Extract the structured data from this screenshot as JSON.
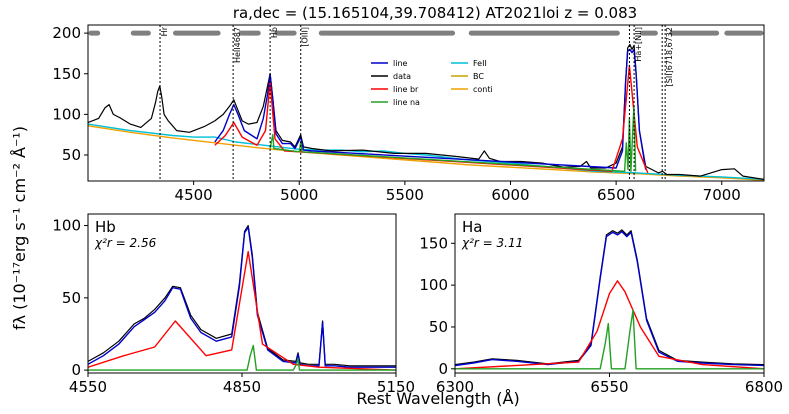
{
  "figure": {
    "suptitle": "ra,dec = (15.165104,39.708412)   AT2021loi   z = 0.083",
    "ylabel": "fλ (10⁻¹⁷erg s⁻¹ cm⁻² Å⁻¹)",
    "xlabel": "Rest Wavelength (Å)"
  },
  "colors": {
    "line": "#0000cc",
    "data": "#000000",
    "line_br": "#ff0000",
    "line_na": "#22a022",
    "FeII": "#00bfd8",
    "BC": "#c8a400",
    "conti": "#f0a000",
    "mask": "#808080"
  },
  "chart_data": [
    {
      "panel": "top",
      "type": "line",
      "xlim": [
        4000,
        7200
      ],
      "ylim": [
        18,
        210
      ],
      "xticks": [
        4500,
        5000,
        5500,
        6000,
        6500,
        7000
      ],
      "yticks": [
        50,
        100,
        150,
        200
      ],
      "legend": {
        "placement": "center",
        "entries": [
          {
            "label": "line",
            "color_key": "line"
          },
          {
            "label": "data",
            "color_key": "data"
          },
          {
            "label": "line br",
            "color_key": "line_br"
          },
          {
            "label": "line na",
            "color_key": "line_na"
          },
          {
            "label": "FeII",
            "color_key": "FeII"
          },
          {
            "label": "BC",
            "color_key": "BC"
          },
          {
            "label": "conti",
            "color_key": "conti"
          }
        ]
      },
      "line_markers": [
        {
          "label": "Hr",
          "x": 4341
        },
        {
          "label": "HeII4687",
          "x": 4687
        },
        {
          "label": "Hb",
          "x": 4862
        },
        {
          "label": "[OIII]",
          "x": 5007
        },
        {
          "label": "Ha+[NII]",
          "x": 6563,
          "x2": 6585
        },
        {
          "label": "[SII]6718,6732",
          "x": 6718,
          "x2": 6732
        }
      ],
      "mask_y": 200,
      "mask_segments": [
        [
          4000,
          4060
        ],
        [
          4200,
          4300
        ],
        [
          4400,
          4630
        ],
        [
          4710,
          4820
        ],
        [
          4880,
          4990
        ],
        [
          5090,
          5740
        ],
        [
          5800,
          6520
        ],
        [
          6610,
          6700
        ],
        [
          6750,
          6990
        ],
        [
          7010,
          7200
        ]
      ],
      "series": [
        {
          "name": "conti",
          "color_key": "conti",
          "x": [
            4000,
            4200,
            4400,
            4600,
            4800,
            5000,
            5200,
            5400,
            5600,
            5800,
            6000,
            6200,
            6400,
            6600,
            6800,
            7000,
            7200
          ],
          "y": [
            86,
            78,
            71,
            65,
            59,
            54,
            50,
            46,
            42,
            38,
            35,
            32,
            29,
            27,
            24,
            22,
            19
          ]
        },
        {
          "name": "FeII",
          "color_key": "FeII",
          "x": [
            4000,
            4200,
            4400,
            4500,
            4600,
            4700,
            4800,
            5000,
            5100,
            5200,
            5300,
            5400,
            5500,
            5600,
            5700,
            5800,
            5900,
            6000,
            6200,
            6400,
            6600,
            6800,
            7000,
            7200
          ],
          "y": [
            88,
            80,
            74,
            72,
            72,
            66,
            63,
            57,
            56,
            56,
            54,
            55,
            52,
            50,
            47,
            44,
            42,
            40,
            35,
            30,
            28,
            25,
            23,
            20
          ]
        },
        {
          "name": "data",
          "color_key": "data",
          "x": [
            4000,
            4050,
            4080,
            4100,
            4120,
            4150,
            4200,
            4250,
            4300,
            4320,
            4330,
            4340,
            4350,
            4360,
            4380,
            4420,
            4480,
            4550,
            4600,
            4640,
            4670,
            4690,
            4710,
            4730,
            4760,
            4800,
            4830,
            4850,
            4862,
            4875,
            4890,
            4920,
            4959,
            4980,
            5007,
            5020,
            5060,
            5150,
            5300,
            5450,
            5600,
            5750,
            5850,
            5876,
            5900,
            5950,
            6050,
            6150,
            6250,
            6330,
            6360,
            6380,
            6450,
            6500,
            6530,
            6545,
            6555,
            6565,
            6575,
            6585,
            6595,
            6610,
            6640,
            6700,
            6720,
            6740,
            6800,
            6900,
            7000,
            7060,
            7100,
            7200
          ],
          "y": [
            90,
            95,
            108,
            112,
            100,
            96,
            88,
            84,
            95,
            115,
            128,
            135,
            120,
            100,
            92,
            80,
            78,
            85,
            92,
            100,
            110,
            118,
            105,
            92,
            88,
            90,
            110,
            135,
            150,
            120,
            80,
            68,
            66,
            60,
            75,
            60,
            58,
            55,
            56,
            52,
            52,
            48,
            45,
            55,
            46,
            42,
            42,
            40,
            35,
            36,
            42,
            34,
            34,
            40,
            60,
            140,
            182,
            186,
            180,
            185,
            150,
            80,
            36,
            28,
            30,
            26,
            26,
            24,
            32,
            33,
            24,
            20
          ]
        },
        {
          "name": "line",
          "color_key": "line",
          "x": [
            4600,
            4640,
            4670,
            4690,
            4710,
            4740,
            4800,
            4830,
            4850,
            4862,
            4875,
            4890,
            4920,
            4959,
            4980,
            5007,
            5020,
            5060,
            6500,
            6530,
            6545,
            6555,
            6565,
            6575,
            6585,
            6595,
            6610,
            6640
          ],
          "y": [
            66,
            80,
            100,
            112,
            100,
            80,
            70,
            95,
            125,
            150,
            118,
            76,
            64,
            64,
            58,
            72,
            56,
            55,
            34,
            55,
            140,
            178,
            180,
            176,
            180,
            148,
            80,
            32
          ]
        },
        {
          "name": "line br",
          "color_key": "line_br",
          "x": [
            4600,
            4650,
            4690,
            4730,
            4800,
            4840,
            4862,
            4885,
            4930,
            6480,
            6530,
            6563,
            6600,
            6650
          ],
          "y": [
            62,
            74,
            90,
            72,
            62,
            80,
            140,
            70,
            55,
            30,
            70,
            160,
            60,
            28
          ]
        },
        {
          "name": "line na",
          "color_key": "line_na",
          "x": [
            4862,
            4875,
            4880,
            5000,
            5007,
            5014,
            6540,
            6548,
            6556,
            6563,
            6570,
            6584,
            6592
          ],
          "y": [
            58,
            75,
            58,
            54,
            66,
            54,
            30,
            65,
            32,
            95,
            30,
            110,
            30
          ]
        }
      ]
    },
    {
      "panel": "Hb",
      "type": "line",
      "label": "Hb",
      "chi2_label": "χ²r = 2.56",
      "xlim": [
        4550,
        5150
      ],
      "ylim": [
        -2,
        108
      ],
      "xticks": [
        4550,
        4850,
        5150
      ],
      "yticks": [
        0,
        50,
        100
      ],
      "series": [
        {
          "name": "data",
          "color_key": "data",
          "x": [
            4550,
            4580,
            4610,
            4640,
            4660,
            4680,
            4700,
            4715,
            4730,
            4750,
            4770,
            4800,
            4830,
            4845,
            4855,
            4862,
            4870,
            4880,
            4900,
            4930,
            4955,
            4959,
            4963,
            4980,
            5000,
            5007,
            5012,
            5030,
            5060,
            5100,
            5150
          ],
          "y": [
            6,
            12,
            20,
            32,
            36,
            42,
            50,
            58,
            57,
            38,
            28,
            22,
            25,
            60,
            96,
            100,
            80,
            40,
            15,
            7,
            6,
            12,
            5,
            4,
            4,
            34,
            4,
            4,
            3,
            3,
            3
          ]
        },
        {
          "name": "line",
          "color_key": "line",
          "x": [
            4550,
            4580,
            4610,
            4640,
            4660,
            4680,
            4700,
            4715,
            4730,
            4750,
            4770,
            4800,
            4830,
            4845,
            4855,
            4862,
            4870,
            4880,
            4900,
            4930,
            4955,
            4959,
            4963,
            4980,
            5000,
            5007,
            5012,
            5030,
            5060,
            5100,
            5150
          ],
          "y": [
            4,
            10,
            18,
            30,
            35,
            40,
            48,
            57,
            56,
            36,
            26,
            20,
            23,
            58,
            95,
            99,
            78,
            38,
            14,
            6,
            5,
            11,
            4,
            3,
            3,
            33,
            3,
            3,
            2,
            2,
            2
          ]
        },
        {
          "name": "line br",
          "color_key": "line_br",
          "x": [
            4550,
            4620,
            4680,
            4720,
            4780,
            4830,
            4862,
            4890,
            4950,
            5000,
            5150
          ],
          "y": [
            2,
            10,
            16,
            34,
            10,
            14,
            82,
            18,
            4,
            2,
            0
          ]
        },
        {
          "name": "line na",
          "color_key": "line_na",
          "x": [
            4550,
            4860,
            4866,
            4872,
            4878,
            4950,
            4956,
            4959,
            4962,
            5000,
            5150
          ],
          "y": [
            0,
            0,
            10,
            17,
            0,
            0,
            4,
            8,
            0,
            0,
            0
          ]
        }
      ]
    },
    {
      "panel": "Ha",
      "type": "line",
      "label": "Ha",
      "chi2_label": "χ²r = 3.11",
      "xlim": [
        6300,
        6800
      ],
      "ylim": [
        -5,
        185
      ],
      "xticks": [
        6300,
        6550,
        6800
      ],
      "yticks": [
        0,
        50,
        100,
        150
      ],
      "series": [
        {
          "name": "data",
          "color_key": "data",
          "x": [
            6300,
            6330,
            6360,
            6400,
            6450,
            6500,
            6520,
            6535,
            6545,
            6555,
            6563,
            6570,
            6578,
            6585,
            6595,
            6610,
            6630,
            6660,
            6700,
            6750,
            6800
          ],
          "y": [
            5,
            8,
            12,
            10,
            6,
            10,
            30,
            110,
            160,
            165,
            162,
            166,
            160,
            165,
            130,
            60,
            22,
            10,
            8,
            6,
            5
          ]
        },
        {
          "name": "line",
          "color_key": "line",
          "x": [
            6300,
            6330,
            6360,
            6400,
            6450,
            6500,
            6520,
            6535,
            6545,
            6555,
            6563,
            6570,
            6578,
            6585,
            6595,
            6610,
            6630,
            6660,
            6700,
            6750,
            6800
          ],
          "y": [
            4,
            7,
            11,
            9,
            5,
            9,
            28,
            108,
            158,
            163,
            160,
            164,
            158,
            163,
            128,
            58,
            20,
            9,
            7,
            5,
            4
          ]
        },
        {
          "name": "line br",
          "color_key": "line_br",
          "x": [
            6300,
            6500,
            6530,
            6550,
            6563,
            6575,
            6600,
            6630,
            6700,
            6800
          ],
          "y": [
            0,
            8,
            45,
            90,
            105,
            92,
            50,
            15,
            5,
            0
          ]
        },
        {
          "name": "line na",
          "color_key": "line_na",
          "x": [
            6300,
            6535,
            6543,
            6548,
            6553,
            6575,
            6583,
            6588,
            6593,
            6800
          ],
          "y": [
            0,
            0,
            30,
            54,
            0,
            0,
            45,
            70,
            0,
            0
          ]
        }
      ]
    }
  ]
}
